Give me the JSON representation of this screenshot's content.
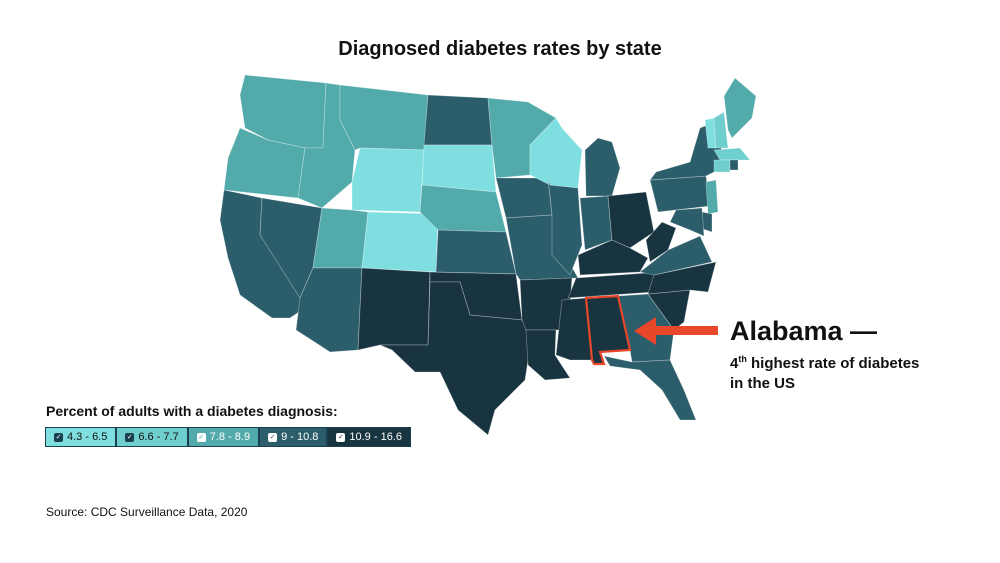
{
  "title": "Diagnosed diabetes rates by state",
  "callout": {
    "state": "Alabama",
    "headline": "Alabama —",
    "rank_number": "4",
    "rank_suffix": "th",
    "line1_rest": " highest rate of diabetes",
    "line2": "in the US",
    "arrow_color": "#e8472a"
  },
  "legend": {
    "title": "Percent of adults with a diabetes diagnosis:",
    "items": [
      {
        "label": "4.3 - 6.5",
        "color": "#7fdfe0",
        "text_color": "#111111",
        "checked": true
      },
      {
        "label": "6.6 - 7.7",
        "color": "#6fcfcf",
        "text_color": "#111111",
        "checked": true
      },
      {
        "label": "7.8 - 8.9",
        "color": "#52aaaa",
        "text_color": "#ffffff",
        "checked": true
      },
      {
        "label": "9 - 10.8",
        "color": "#2b5d6b",
        "text_color": "#ffffff",
        "checked": true
      },
      {
        "label": "10.9 - 16.6",
        "color": "#173440",
        "text_color": "#ffffff",
        "checked": true
      }
    ]
  },
  "states": {
    "WA": 2,
    "OR": 2,
    "CA": 3,
    "NV": 3,
    "ID": 2,
    "MT": 2,
    "WY": 0,
    "UT": 2,
    "CO": 0,
    "AZ": 3,
    "NM": 4,
    "ND": 3,
    "SD": 0,
    "NE": 2,
    "KS": 3,
    "OK": 4,
    "TX": 4,
    "MN": 2,
    "IA": 3,
    "MO": 3,
    "AR": 4,
    "LA": 4,
    "WI": 0,
    "IL": 3,
    "MI": 3,
    "IN": 3,
    "OH": 4,
    "KY": 4,
    "TN": 4,
    "MS": 4,
    "AL": 4,
    "GA": 3,
    "FL": 3,
    "SC": 4,
    "NC": 4,
    "VA": 3,
    "WV": 4,
    "PA": 3,
    "NY": 3,
    "VT": 0,
    "NH": 1,
    "ME": 2,
    "MA": 1,
    "CT": 1,
    "RI": 3,
    "NJ": 2,
    "DE": 3,
    "MD": 3
  },
  "source": "Source: CDC Surveillance Data, 2020"
}
